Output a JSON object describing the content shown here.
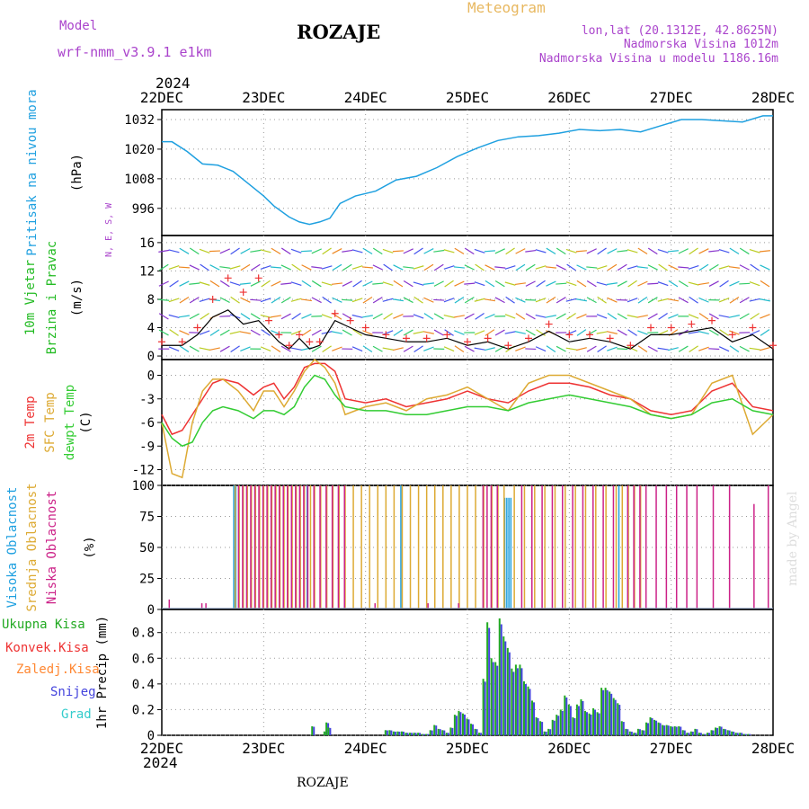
{
  "header": {
    "title": "ROZAJE",
    "model_label": "Model",
    "model_name": "wrf-nmm_v3.9.1 e1km",
    "meteogram_label": "Meteogram",
    "lonlat": "lon,lat (20.1312E, 42.8625N)",
    "elevation": "Nadmorska Visina 1012m",
    "model_elevation": "Nadmorska Visina u modelu 1186.16m",
    "year_top": "2024",
    "year_bottom": "2024",
    "footer_title": "ROZAJE",
    "watermark": "made by Angel"
  },
  "colors": {
    "pressure": "#1fa0e0",
    "wind_label": "#22bb22",
    "temp_2m": "#ee3333",
    "temp_sfc": "#ddaa33",
    "temp_dewpt": "#33cc33",
    "cloud_high": "#1fa0e0",
    "cloud_mid": "#ddaa33",
    "cloud_low": "#cc2288",
    "precip_total": "#22aa22",
    "precip_conv": "#ee3333",
    "precip_frz": "#ff8833",
    "precip_snow": "#4444dd",
    "precip_grad": "#33cccc",
    "purple": "#aa44cc",
    "orange_title": "#e8b860"
  },
  "x_ticks": [
    "22DEC",
    "23DEC",
    "24DEC",
    "25DEC",
    "26DEC",
    "27DEC",
    "28DEC"
  ],
  "chart_data": [
    {
      "type": "line",
      "name": "pressure",
      "ylabel_lines": [
        "Pritisak na nivou mora",
        "(hPa)"
      ],
      "yticks": [
        996,
        1008,
        1020,
        1032
      ],
      "ylim": [
        985,
        1036
      ],
      "x_days": [
        0,
        0.1,
        0.25,
        0.4,
        0.55,
        0.7,
        0.85,
        1.0,
        1.1,
        1.25,
        1.35,
        1.45,
        1.55,
        1.65,
        1.75,
        1.9,
        2.1,
        2.3,
        2.5,
        2.7,
        2.9,
        3.1,
        3.3,
        3.5,
        3.7,
        3.9,
        4.1,
        4.3,
        4.5,
        4.7,
        4.9,
        5.1,
        5.3,
        5.5,
        5.7,
        5.9,
        6.0
      ],
      "values": [
        1023,
        1023,
        1019,
        1014,
        1013.5,
        1011,
        1006,
        1001,
        997,
        992.5,
        990.5,
        989.5,
        990.5,
        992,
        998,
        1001,
        1003,
        1007.5,
        1009,
        1012.5,
        1017,
        1020.5,
        1023.5,
        1025,
        1025.5,
        1026.5,
        1028,
        1027.5,
        1028,
        1027,
        1029.5,
        1032,
        1032,
        1031.5,
        1031,
        1033.5,
        1033.5
      ],
      "series": [
        {
          "name": "pressure"
        }
      ]
    },
    {
      "type": "line",
      "name": "wind",
      "ylabel_lines": [
        "10m Vjetar",
        "Brzina i Pravac",
        "(m/s)"
      ],
      "compass": "N, E, S, W",
      "yticks": [
        0,
        4,
        8,
        12,
        16
      ],
      "ylim": [
        -0.5,
        17
      ],
      "x_days": [
        0,
        0.2,
        0.35,
        0.5,
        0.65,
        0.8,
        0.95,
        1.05,
        1.15,
        1.25,
        1.35,
        1.45,
        1.55,
        1.7,
        1.85,
        2.0,
        2.2,
        2.4,
        2.6,
        2.8,
        3.0,
        3.2,
        3.4,
        3.6,
        3.8,
        4.0,
        4.2,
        4.4,
        4.6,
        4.8,
        5.0,
        5.2,
        5.4,
        5.6,
        5.8,
        6.0
      ],
      "speed": [
        1.5,
        1.5,
        3.0,
        5.5,
        6.5,
        4.5,
        5.0,
        3.5,
        2.0,
        1.0,
        2.5,
        1.0,
        1.5,
        5.0,
        4.0,
        3.0,
        2.5,
        2.0,
        2.0,
        2.5,
        1.5,
        2.0,
        1.0,
        2.0,
        3.5,
        2.0,
        2.5,
        2.0,
        1.0,
        3.0,
        3.0,
        3.5,
        4.0,
        2.0,
        3.0,
        1.0
      ],
      "gust": [
        2.0,
        2.0,
        4.0,
        8.0,
        11.0,
        9.0,
        11.0,
        5.0,
        3.0,
        1.5,
        3.0,
        2.0,
        2.0,
        6.0,
        5.0,
        4.0,
        3.0,
        2.5,
        2.5,
        3.0,
        2.0,
        2.5,
        1.5,
        2.5,
        4.5,
        3.0,
        3.0,
        2.5,
        1.5,
        4.0,
        4.0,
        4.5,
        5.0,
        3.0,
        4.0,
        1.5
      ],
      "series": [
        {
          "name": "speed"
        },
        {
          "name": "gust"
        }
      ]
    },
    {
      "type": "line",
      "name": "temperature",
      "ylabel_lines": [
        "2m Temp",
        "SFC Temp",
        "dewpt Temp",
        "(C)"
      ],
      "yticks": [
        0,
        -3,
        -6,
        -9,
        -12
      ],
      "ylim": [
        -14,
        2
      ],
      "x_days": [
        0,
        0.1,
        0.2,
        0.3,
        0.4,
        0.5,
        0.6,
        0.75,
        0.9,
        1.0,
        1.1,
        1.2,
        1.3,
        1.4,
        1.5,
        1.6,
        1.7,
        1.8,
        2.0,
        2.2,
        2.4,
        2.6,
        2.8,
        3.0,
        3.2,
        3.4,
        3.6,
        3.8,
        4.0,
        4.2,
        4.4,
        4.6,
        4.8,
        5.0,
        5.2,
        5.4,
        5.6,
        5.8,
        6.0
      ],
      "series": [
        {
          "name": "2m Temp",
          "values": [
            -5.0,
            -7.5,
            -7.0,
            -5.0,
            -3.0,
            -1.0,
            -0.5,
            -1.0,
            -2.5,
            -1.5,
            -1.0,
            -3.0,
            -1.5,
            1.0,
            1.5,
            1.5,
            0.5,
            -3.0,
            -3.5,
            -3.0,
            -4.0,
            -3.5,
            -3.0,
            -2.0,
            -3.0,
            -3.5,
            -2.0,
            -1.0,
            -1.0,
            -1.5,
            -2.5,
            -3.0,
            -4.5,
            -5.0,
            -4.5,
            -2.0,
            -1.0,
            -4.0,
            -4.5
          ]
        },
        {
          "name": "SFC Temp",
          "values": [
            -6.0,
            -12.5,
            -13.0,
            -6.0,
            -2.0,
            -0.5,
            -0.5,
            -2.0,
            -4.5,
            -2.0,
            -2.0,
            -4.0,
            -2.0,
            0.5,
            2.0,
            1.0,
            -1.0,
            -5.0,
            -4.0,
            -3.5,
            -4.5,
            -3.0,
            -2.5,
            -1.5,
            -3.0,
            -4.5,
            -1.0,
            0.0,
            0.0,
            -1.0,
            -2.0,
            -3.0,
            -5.0,
            -5.5,
            -5.0,
            -1.0,
            0.0,
            -7.5,
            -5.0
          ]
        },
        {
          "name": "dewpt Temp",
          "values": [
            -6.0,
            -8.0,
            -9.0,
            -8.5,
            -6.0,
            -4.5,
            -4.0,
            -4.5,
            -5.5,
            -4.5,
            -4.5,
            -5.0,
            -4.0,
            -1.5,
            0.0,
            -0.5,
            -2.5,
            -4.0,
            -4.5,
            -4.5,
            -5.0,
            -5.0,
            -4.5,
            -4.0,
            -4.0,
            -4.5,
            -3.5,
            -3.0,
            -2.5,
            -3.0,
            -3.5,
            -4.0,
            -5.0,
            -5.5,
            -5.0,
            -3.5,
            -3.0,
            -4.5,
            -5.0
          ]
        }
      ]
    },
    {
      "type": "bar",
      "name": "cloudiness",
      "ylabel_lines": [
        "Visoka Oblacnost",
        "Srednja Oblacnost",
        "Niska Oblacnost",
        "(%)"
      ],
      "yticks": [
        0,
        25,
        50,
        75,
        100
      ],
      "ylim": [
        0,
        100
      ],
      "series": [
        {
          "name": "Visoka Oblacnost",
          "x_days": [
            0.72,
            0.74,
            1.44,
            2.36,
            3.38,
            3.4,
            3.42,
            3.44,
            4.5
          ],
          "values": [
            100,
            100,
            100,
            100,
            90,
            90,
            90,
            90,
            100
          ]
        },
        {
          "name": "Srednja Oblacnost",
          "x_days": [
            0.72,
            0.76,
            0.8,
            0.84,
            0.88,
            0.92,
            0.96,
            1.0,
            1.04,
            1.08,
            1.12,
            1.16,
            1.2,
            1.24,
            1.28,
            1.32,
            1.36,
            1.4,
            1.46,
            1.5,
            1.56,
            1.62,
            1.68,
            1.74,
            1.8,
            1.88,
            1.96,
            2.04,
            2.12,
            2.2,
            2.28,
            2.36,
            2.44,
            2.52,
            2.6,
            2.68,
            2.76,
            2.84,
            2.92,
            3.0,
            3.08,
            3.16,
            3.24,
            3.3,
            3.36,
            3.46,
            3.56,
            3.66,
            3.76,
            3.86,
            3.96,
            4.06,
            4.16,
            4.26,
            4.36,
            4.46,
            4.52,
            4.58,
            4.64,
            4.7
          ],
          "values": [
            100,
            100,
            100,
            100,
            100,
            100,
            100,
            100,
            100,
            100,
            100,
            100,
            100,
            100,
            100,
            100,
            100,
            100,
            100,
            100,
            100,
            100,
            100,
            100,
            100,
            100,
            100,
            100,
            100,
            100,
            100,
            100,
            100,
            100,
            100,
            100,
            100,
            100,
            100,
            100,
            100,
            100,
            100,
            100,
            100,
            100,
            100,
            100,
            100,
            100,
            100,
            100,
            100,
            100,
            100,
            100,
            100,
            100,
            100,
            100
          ]
        },
        {
          "name": "Niska Oblacnost",
          "x_days": [
            0.06,
            0.38,
            0.42,
            0.74,
            0.78,
            0.82,
            0.86,
            0.9,
            0.94,
            0.98,
            1.02,
            1.06,
            1.1,
            1.14,
            1.18,
            1.22,
            1.26,
            1.3,
            1.34,
            1.38,
            1.42,
            1.48,
            1.54,
            1.6,
            1.66,
            1.72,
            1.78,
            2.08,
            2.6,
            2.9,
            3.14,
            3.18,
            3.22,
            3.28,
            3.52,
            3.62,
            3.72,
            3.82,
            3.92,
            4.02,
            4.12,
            4.22,
            4.32,
            4.42,
            4.56,
            4.62,
            4.68,
            4.74,
            4.84,
            4.94,
            5.04,
            5.14,
            5.24,
            5.4,
            5.56,
            5.8,
            5.94
          ],
          "values": [
            8,
            5,
            5,
            100,
            100,
            100,
            100,
            100,
            100,
            100,
            100,
            100,
            100,
            100,
            100,
            100,
            100,
            100,
            100,
            100,
            100,
            100,
            100,
            100,
            100,
            100,
            100,
            5,
            5,
            5,
            100,
            100,
            100,
            100,
            100,
            100,
            100,
            100,
            100,
            100,
            100,
            100,
            100,
            100,
            100,
            100,
            100,
            100,
            100,
            100,
            100,
            100,
            100,
            100,
            100,
            85,
            100
          ]
        }
      ]
    },
    {
      "type": "bar",
      "name": "precipitation",
      "ylabel_lines": [
        "1hr Precip (mm)"
      ],
      "legend": [
        "Ukupna Kisa",
        "Konvek.Kisa",
        "Zaledj.Kisa",
        "Snijeg",
        "Grad"
      ],
      "yticks": [
        0,
        0.2,
        0.4,
        0.6,
        0.8
      ],
      "ylim": [
        0,
        0.98
      ],
      "series": [
        {
          "name": "Snijeg",
          "x_days": [
            1.48,
            1.6,
            1.62,
            1.64,
            2.2,
            2.24,
            2.28,
            2.32,
            2.36,
            2.4,
            2.44,
            2.48,
            2.52,
            2.56,
            2.6,
            2.64,
            2.68,
            2.72,
            2.76,
            2.8,
            2.84,
            2.88,
            2.92,
            2.96,
            3.0,
            3.04,
            3.08,
            3.12,
            3.16,
            3.2,
            3.24,
            3.28,
            3.32,
            3.36,
            3.4,
            3.44,
            3.48,
            3.52,
            3.56,
            3.6,
            3.64,
            3.68,
            3.72,
            3.76,
            3.8,
            3.84,
            3.88,
            3.92,
            3.96,
            4.0,
            4.04,
            4.08,
            4.12,
            4.16,
            4.2,
            4.24,
            4.28,
            4.32,
            4.36,
            4.4,
            4.44,
            4.48,
            4.52,
            4.56,
            4.6,
            4.64,
            4.68,
            4.72,
            4.76,
            4.8,
            4.84,
            4.88,
            4.92,
            4.96,
            5.0,
            5.04,
            5.08,
            5.12,
            5.16,
            5.2,
            5.24,
            5.28,
            5.32,
            5.36,
            5.4,
            5.44,
            5.48,
            5.52,
            5.56,
            5.6,
            5.64,
            5.68,
            5.72,
            5.76
          ],
          "values": [
            0.07,
            0.03,
            0.1,
            0.06,
            0.04,
            0.04,
            0.03,
            0.03,
            0.03,
            0.02,
            0.02,
            0.02,
            0.02,
            0.01,
            0.01,
            0.04,
            0.08,
            0.05,
            0.04,
            0.02,
            0.06,
            0.16,
            0.19,
            0.17,
            0.13,
            0.09,
            0.05,
            0.02,
            0.44,
            0.88,
            0.6,
            0.57,
            0.91,
            0.77,
            0.68,
            0.52,
            0.55,
            0.55,
            0.42,
            0.38,
            0.27,
            0.14,
            0.11,
            0.03,
            0.05,
            0.12,
            0.16,
            0.2,
            0.31,
            0.24,
            0.14,
            0.24,
            0.28,
            0.19,
            0.17,
            0.21,
            0.18,
            0.37,
            0.37,
            0.34,
            0.29,
            0.25,
            0.11,
            0.05,
            0.03,
            0.02,
            0.05,
            0.04,
            0.1,
            0.14,
            0.12,
            0.1,
            0.08,
            0.08,
            0.07,
            0.07,
            0.07,
            0.04,
            0.02,
            0.03,
            0.05,
            0.02,
            0.01,
            0.02,
            0.04,
            0.06,
            0.07,
            0.05,
            0.04,
            0.03,
            0.02,
            0.02,
            0.01,
            0.01
          ]
        }
      ]
    }
  ]
}
